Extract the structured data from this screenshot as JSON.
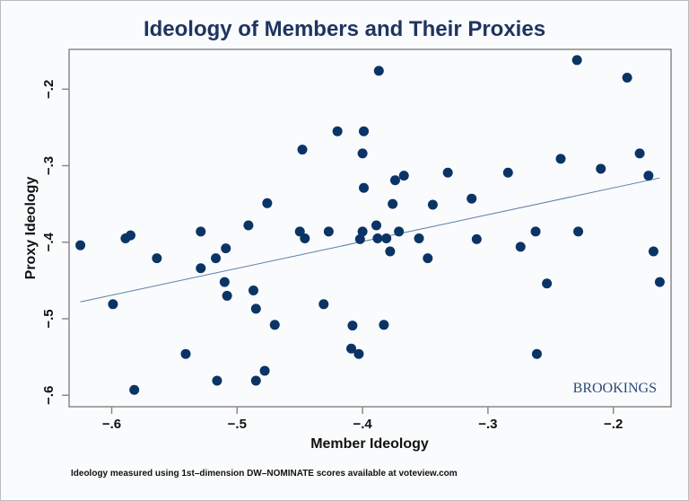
{
  "chart_data": {
    "type": "scatter",
    "title": "Ideology of Members and Their Proxies",
    "xlabel": "Member Ideology",
    "ylabel": "Proxy Ideology",
    "xlim": [
      -0.634,
      -0.154
    ],
    "ylim": [
      -0.615,
      -0.148
    ],
    "xticks": [
      -0.6,
      -0.5,
      -0.4,
      -0.3,
      -0.2
    ],
    "xtick_labels": [
      "−.6",
      "−.5",
      "−.4",
      "−.3",
      "−.2"
    ],
    "yticks": [
      -0.2,
      -0.3,
      -0.4,
      -0.5,
      -0.6
    ],
    "ytick_labels": [
      "−.2",
      "−.3",
      "−.4",
      "−.5",
      "−.6"
    ],
    "grid": false,
    "point_color": "#0b3466",
    "fit_line": {
      "x": [
        -0.625,
        -0.163
      ],
      "y": [
        -0.478,
        -0.316
      ],
      "color": "#5a7fa8"
    },
    "points": [
      [
        -0.625,
        -0.404
      ],
      [
        -0.589,
        -0.395
      ],
      [
        -0.585,
        -0.391
      ],
      [
        -0.564,
        -0.421
      ],
      [
        -0.599,
        -0.481
      ],
      [
        -0.582,
        -0.593
      ],
      [
        -0.541,
        -0.546
      ],
      [
        -0.529,
        -0.386
      ],
      [
        -0.529,
        -0.434
      ],
      [
        -0.517,
        -0.421
      ],
      [
        -0.509,
        -0.408
      ],
      [
        -0.51,
        -0.452
      ],
      [
        -0.508,
        -0.47
      ],
      [
        -0.516,
        -0.581
      ],
      [
        -0.491,
        -0.378
      ],
      [
        -0.476,
        -0.349
      ],
      [
        -0.487,
        -0.463
      ],
      [
        -0.485,
        -0.487
      ],
      [
        -0.47,
        -0.508
      ],
      [
        -0.485,
        -0.581
      ],
      [
        -0.478,
        -0.568
      ],
      [
        -0.448,
        -0.279
      ],
      [
        -0.45,
        -0.386
      ],
      [
        -0.446,
        -0.395
      ],
      [
        -0.42,
        -0.255
      ],
      [
        -0.427,
        -0.386
      ],
      [
        -0.431,
        -0.481
      ],
      [
        -0.408,
        -0.509
      ],
      [
        -0.409,
        -0.539
      ],
      [
        -0.387,
        -0.176
      ],
      [
        -0.399,
        -0.255
      ],
      [
        -0.4,
        -0.284
      ],
      [
        -0.399,
        -0.329
      ],
      [
        -0.4,
        -0.386
      ],
      [
        -0.402,
        -0.396
      ],
      [
        -0.403,
        -0.546
      ],
      [
        -0.383,
        -0.508
      ],
      [
        -0.389,
        -0.378
      ],
      [
        -0.388,
        -0.395
      ],
      [
        -0.381,
        -0.395
      ],
      [
        -0.378,
        -0.412
      ],
      [
        -0.376,
        -0.35
      ],
      [
        -0.374,
        -0.319
      ],
      [
        -0.367,
        -0.313
      ],
      [
        -0.371,
        -0.386
      ],
      [
        -0.355,
        -0.395
      ],
      [
        -0.348,
        -0.421
      ],
      [
        -0.344,
        -0.351
      ],
      [
        -0.332,
        -0.309
      ],
      [
        -0.313,
        -0.343
      ],
      [
        -0.309,
        -0.396
      ],
      [
        -0.284,
        -0.309
      ],
      [
        -0.274,
        -0.406
      ],
      [
        -0.262,
        -0.386
      ],
      [
        -0.261,
        -0.546
      ],
      [
        -0.253,
        -0.454
      ],
      [
        -0.242,
        -0.291
      ],
      [
        -0.229,
        -0.162
      ],
      [
        -0.228,
        -0.386
      ],
      [
        -0.21,
        -0.304
      ],
      [
        -0.189,
        -0.185
      ],
      [
        -0.179,
        -0.284
      ],
      [
        -0.172,
        -0.313
      ],
      [
        -0.168,
        -0.412
      ],
      [
        -0.163,
        -0.452
      ]
    ]
  },
  "watermark": "BROOKINGS",
  "footnote": "Ideology measured using 1st–dimension DW–NOMINATE scores available at voteview.com"
}
